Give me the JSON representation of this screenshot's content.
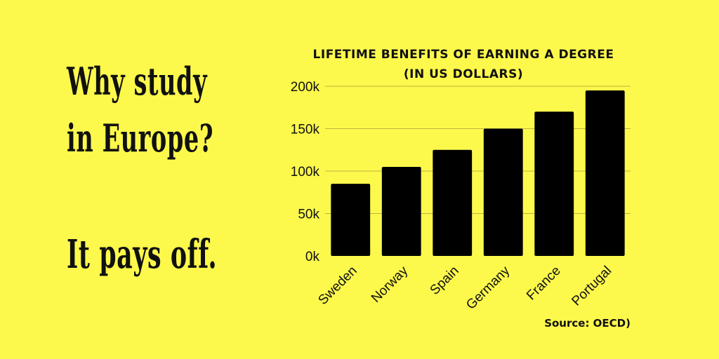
{
  "colors": {
    "background": "#fdf94c",
    "bar": "#000000",
    "grid": "#b9b441",
    "text": "#111111"
  },
  "headline": {
    "line1": "Why study",
    "line2": "in Europe?",
    "line3": "It pays off."
  },
  "chart_data": {
    "type": "bar",
    "title": "LIFETIME BENEFITS OF EARNING A DEGREE",
    "subtitle": "(IN US DOLLARS)",
    "categories": [
      "Sweden",
      "Norway",
      "Spain",
      "Germany",
      "France",
      "Portugal"
    ],
    "values": [
      85000,
      105000,
      125000,
      150000,
      170000,
      195000
    ],
    "ylim": [
      0,
      200000
    ],
    "yticks": [
      0,
      50000,
      100000,
      150000,
      200000
    ],
    "ytick_labels": [
      "0k",
      "50k",
      "100k",
      "150k",
      "200k"
    ],
    "xlabel": "",
    "ylabel": "",
    "grid": true,
    "source": "Source: OECD)"
  }
}
